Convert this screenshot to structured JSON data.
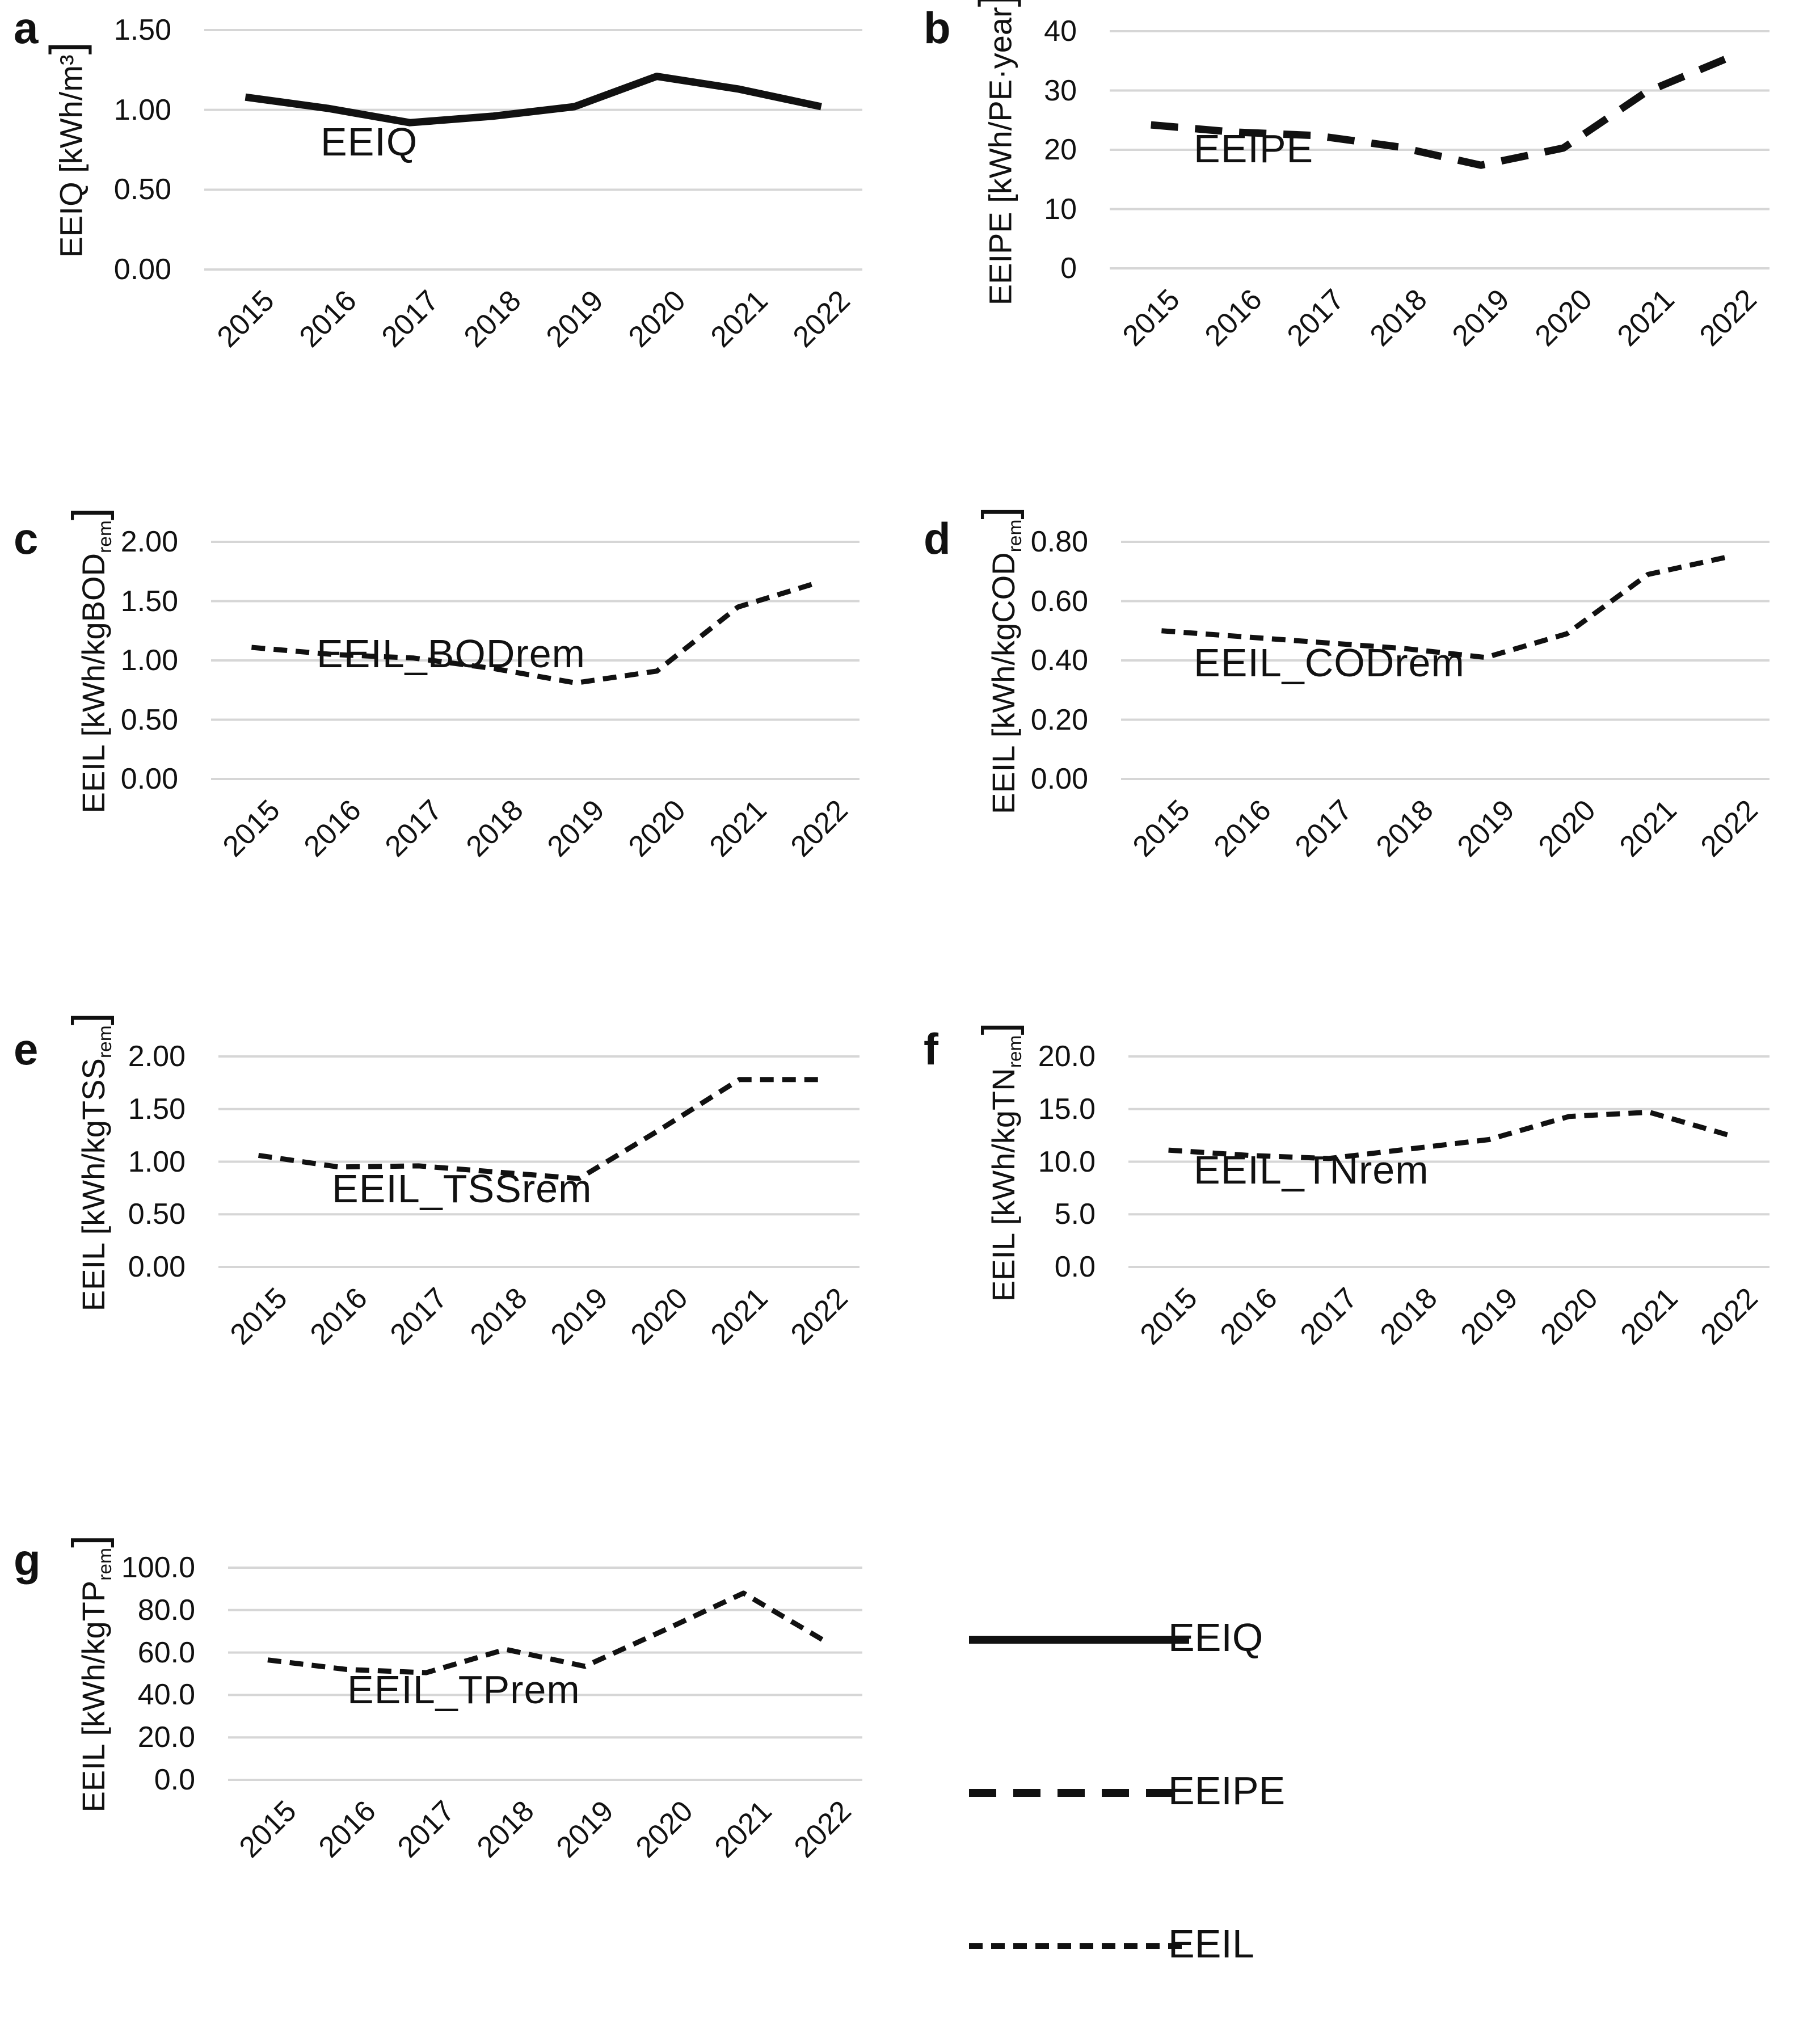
{
  "figure": {
    "background": "#ffffff",
    "line_color": "#111111",
    "gridline_color": "#d6d6d6"
  },
  "chart_data": {
    "type": "line",
    "categories": [
      "2015",
      "2016",
      "2017",
      "2018",
      "2019",
      "2020",
      "2021",
      "2022"
    ],
    "charts": [
      {
        "panel_letter": "a",
        "title": "EEIQ",
        "series_name": "EEIQ",
        "line_style": "solid",
        "ylabel": "EEIQ [kWh/m³]",
        "ylabel_segments": [
          {
            "t": "EEIQ [kWh/m³"
          },
          {
            "t": "]",
            "style": "big"
          }
        ],
        "ylim": [
          0,
          1.5
        ],
        "yticks": [
          {
            "v": 1.5,
            "label": "1.50"
          },
          {
            "v": 1.0,
            "label": "1.00"
          },
          {
            "v": 0.5,
            "label": "0.50"
          },
          {
            "v": 0.0,
            "label": "0.00"
          }
        ],
        "values": [
          1.08,
          1.01,
          0.92,
          0.96,
          1.02,
          1.21,
          1.13,
          1.02
        ]
      },
      {
        "panel_letter": "b",
        "title": "EEIPE",
        "series_name": "EEIPE",
        "line_style": "dash-long",
        "ylabel": "EEIPE [kWh/PE·year]",
        "ylabel_segments": [
          {
            "t": "EEIPE [kWh/PE·year"
          },
          {
            "t": "]",
            "style": "big"
          }
        ],
        "ylim": [
          0,
          40
        ],
        "yticks": [
          {
            "v": 40,
            "label": "40"
          },
          {
            "v": 30,
            "label": "30"
          },
          {
            "v": 20,
            "label": "20"
          },
          {
            "v": 10,
            "label": "10"
          },
          {
            "v": 0,
            "label": "0"
          }
        ],
        "values": [
          24.2,
          23.0,
          22.4,
          20.5,
          17.4,
          20.3,
          29.7,
          35.5
        ]
      },
      {
        "panel_letter": "c",
        "title": "EEIL_BODrem",
        "series_name": "EEIL",
        "line_style": "dash-short",
        "ylabel": "EEIL [kWh/kgBODrem]",
        "ylabel_segments": [
          {
            "t": "EEIL [kWh/kgBOD"
          },
          {
            "t": "rem",
            "style": "sub"
          },
          {
            "t": "]",
            "style": "big"
          }
        ],
        "ylim": [
          0,
          2.0
        ],
        "yticks": [
          {
            "v": 2.0,
            "label": "2.00"
          },
          {
            "v": 1.5,
            "label": "1.50"
          },
          {
            "v": 1.0,
            "label": "1.00"
          },
          {
            "v": 0.5,
            "label": "0.50"
          },
          {
            "v": 0.0,
            "label": "0.00"
          }
        ],
        "values": [
          1.11,
          1.05,
          1.02,
          0.93,
          0.81,
          0.91,
          1.45,
          1.66
        ]
      },
      {
        "panel_letter": "d",
        "title": "EEIL_CODrem",
        "series_name": "EEIL",
        "line_style": "dash-short",
        "ylabel": "EEIL [kWh/kgCODrem]",
        "ylabel_segments": [
          {
            "t": "EEIL [kWh/kgCOD"
          },
          {
            "t": "rem",
            "style": "sub"
          },
          {
            "t": "]",
            "style": "big"
          }
        ],
        "ylim": [
          0,
          0.8
        ],
        "yticks": [
          {
            "v": 0.8,
            "label": "0.80"
          },
          {
            "v": 0.6,
            "label": "0.60"
          },
          {
            "v": 0.4,
            "label": "0.40"
          },
          {
            "v": 0.2,
            "label": "0.20"
          },
          {
            "v": 0.0,
            "label": "0.00"
          }
        ],
        "values": [
          0.5,
          0.48,
          0.46,
          0.44,
          0.41,
          0.49,
          0.69,
          0.75
        ]
      },
      {
        "panel_letter": "e",
        "title": "EEIL_TSSrem",
        "series_name": "EEIL",
        "line_style": "dash-short",
        "ylabel": "EEIL [kWh/kgTSSrem]",
        "ylabel_segments": [
          {
            "t": "EEIL [kWh/kgTSS"
          },
          {
            "t": "rem",
            "style": "sub"
          },
          {
            "t": "]",
            "style": "big"
          }
        ],
        "ylim": [
          0,
          2.0
        ],
        "yticks": [
          {
            "v": 2.0,
            "label": "2.00"
          },
          {
            "v": 1.5,
            "label": "1.50"
          },
          {
            "v": 1.0,
            "label": "1.00"
          },
          {
            "v": 0.5,
            "label": "0.50"
          },
          {
            "v": 0.0,
            "label": "0.00"
          }
        ],
        "values": [
          1.06,
          0.95,
          0.96,
          0.9,
          0.84,
          1.3,
          1.78,
          1.78
        ]
      },
      {
        "panel_letter": "f",
        "title": "EEIL_TNrem",
        "series_name": "EEIL",
        "line_style": "dash-short",
        "ylabel": "EEIL [kWh/kgTNrem]",
        "ylabel_segments": [
          {
            "t": "EEIL [kWh/kgTN"
          },
          {
            "t": "rem",
            "style": "sub"
          },
          {
            "t": "]",
            "style": "big"
          }
        ],
        "ylim": [
          0,
          20
        ],
        "yticks": [
          {
            "v": 20,
            "label": "20.0"
          },
          {
            "v": 15,
            "label": "15.0"
          },
          {
            "v": 10,
            "label": "10.0"
          },
          {
            "v": 5,
            "label": "5.0"
          },
          {
            "v": 0,
            "label": "0.0"
          }
        ],
        "values": [
          11.1,
          10.6,
          10.3,
          11.2,
          12.1,
          14.3,
          14.7,
          12.5
        ]
      },
      {
        "panel_letter": "g",
        "title": "EEIL_TPrem",
        "series_name": "EEIL",
        "line_style": "dash-short",
        "ylabel": "EEIL [kWh/kgTPrem]",
        "ylabel_segments": [
          {
            "t": "EEIL [kWh/kgTP"
          },
          {
            "t": "rem",
            "style": "sub"
          },
          {
            "t": "]",
            "style": "big"
          }
        ],
        "ylim": [
          0,
          100
        ],
        "yticks": [
          {
            "v": 100,
            "label": "100.0"
          },
          {
            "v": 80,
            "label": "80.0"
          },
          {
            "v": 60,
            "label": "60.0"
          },
          {
            "v": 40,
            "label": "40.0"
          },
          {
            "v": 20,
            "label": "20.0"
          },
          {
            "v": 0,
            "label": "0.0"
          }
        ],
        "values": [
          56.5,
          52.0,
          50.5,
          61.5,
          53.5,
          70.5,
          88.0,
          66.0
        ]
      }
    ],
    "legend": {
      "position": "bottom-right",
      "entries": [
        {
          "label": "EEIQ",
          "style": "solid"
        },
        {
          "label": "EEIPE",
          "style": "dash-long"
        },
        {
          "label": "EEIL",
          "style": "dash-short"
        }
      ]
    }
  }
}
